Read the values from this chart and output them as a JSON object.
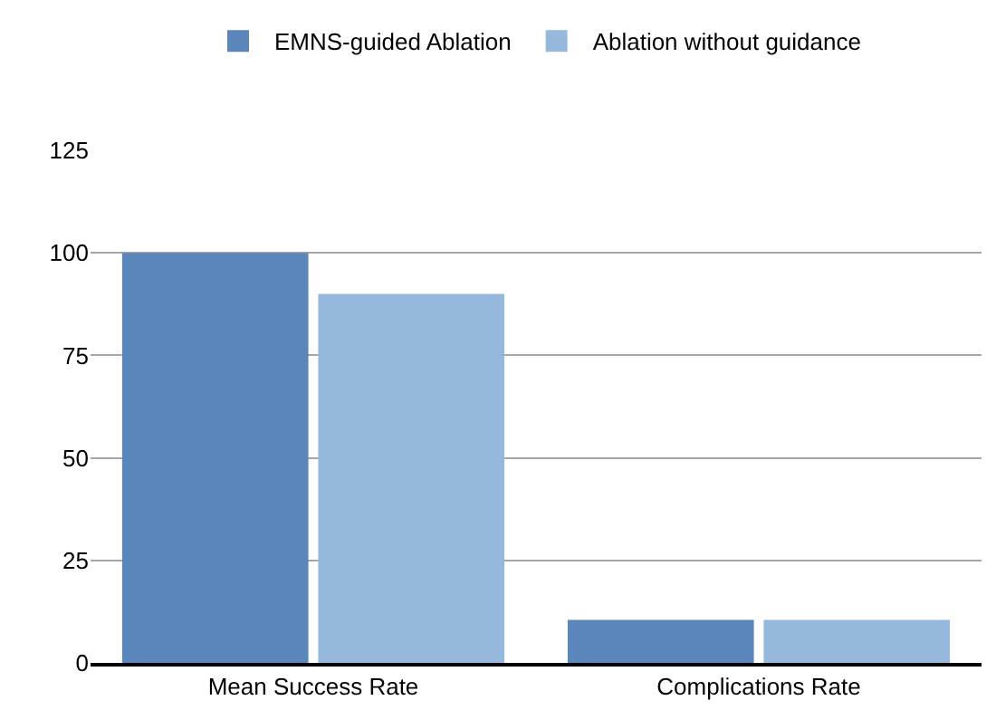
{
  "chart_data": {
    "type": "bar",
    "categories": [
      "Mean Success Rate",
      "Complications Rate"
    ],
    "series": [
      {
        "name": "EMNS-guided Ablation",
        "color": "#5b86bb",
        "values": [
          100,
          10.5
        ]
      },
      {
        "name": "Ablation without guidance",
        "color": "#95b8dc",
        "values": [
          90,
          10.5
        ]
      }
    ],
    "ylim": [
      0,
      125
    ],
    "yticks": [
      0,
      25,
      50,
      75,
      100,
      125
    ],
    "grid": "y",
    "legend": "top"
  }
}
